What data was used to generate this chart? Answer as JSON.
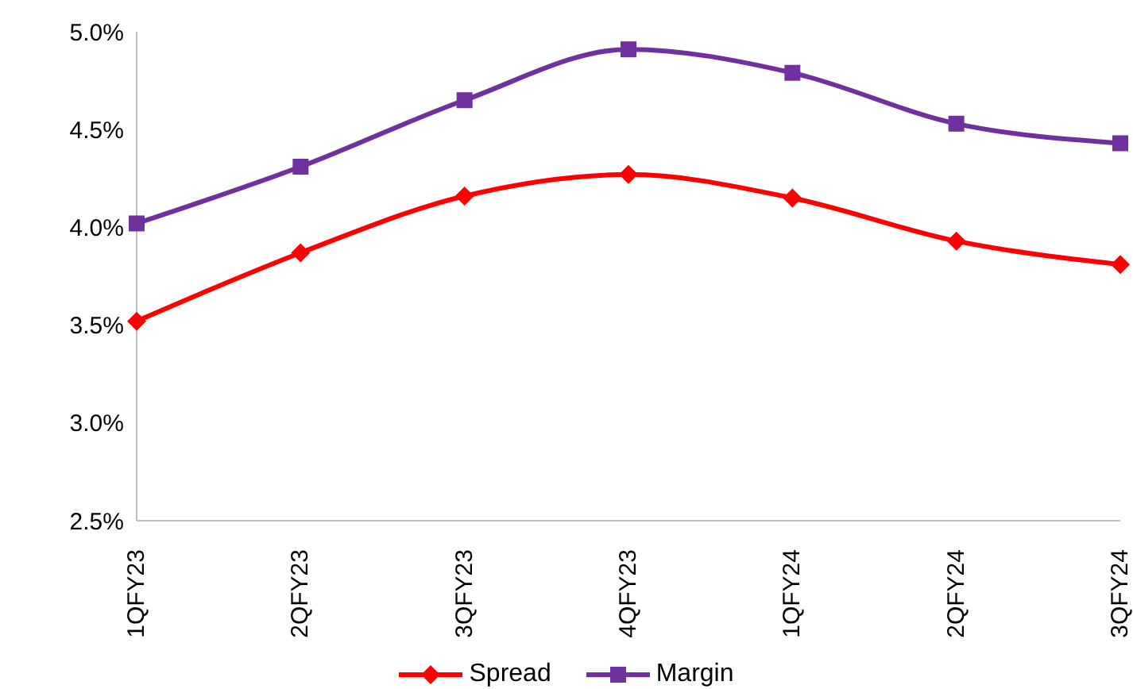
{
  "chart_data": {
    "type": "line",
    "categories": [
      "1QFY23",
      "2QFY23",
      "3QFY23",
      "4QFY23",
      "1QFY24",
      "2QFY24",
      "3QFY24"
    ],
    "series": [
      {
        "name": "Spread",
        "color": "#ff0000",
        "marker": "diamond",
        "values": [
          3.52,
          3.87,
          4.16,
          4.27,
          4.15,
          3.93,
          3.81
        ]
      },
      {
        "name": "Margin",
        "color": "#7030a0",
        "marker": "square",
        "values": [
          4.02,
          4.31,
          4.65,
          4.91,
          4.79,
          4.53,
          4.43
        ]
      }
    ],
    "ylim": [
      2.5,
      5.0
    ],
    "yticks": [
      {
        "value": 2.5,
        "label": "2.5%"
      },
      {
        "value": 3.0,
        "label": "3.0%"
      },
      {
        "value": 3.5,
        "label": "3.5%"
      },
      {
        "value": 4.0,
        "label": "4.0%"
      },
      {
        "value": 4.5,
        "label": "4.5%"
      },
      {
        "value": 5.0,
        "label": "5.0%"
      }
    ],
    "grid": false,
    "legend": "bottom"
  }
}
